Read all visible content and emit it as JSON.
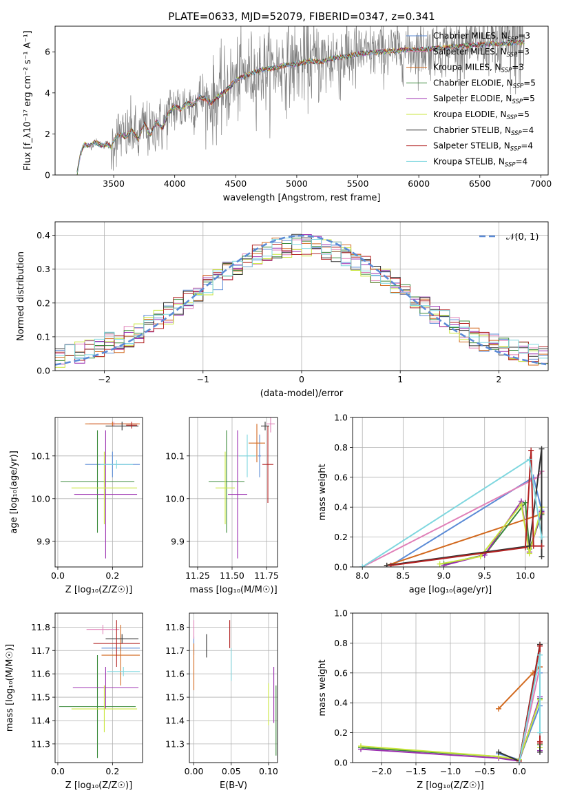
{
  "figure": {
    "title": "PLATE=0633, MJD=52079, FIBERID=0347, z=0.341"
  },
  "colors": [
    "#5b8bd6",
    "#e080b8",
    "#d2691e",
    "#3a8a3a",
    "#9b2fb0",
    "#c8e63c",
    "#333333",
    "#b22222",
    "#7fd7df"
  ],
  "chart_data": [
    {
      "id": "spectrum",
      "type": "line",
      "xlabel": "wavelength [Angstrom, rest frame]",
      "ylabel": "Flux [f_λ10⁻¹⁷ erg cm⁻² s⁻¹ A⁻¹]",
      "xlim": [
        3020,
        7060
      ],
      "ylim": [
        0,
        7.25
      ],
      "xticks": [
        3500,
        4000,
        4500,
        5000,
        5500,
        6000,
        6500,
        7000
      ],
      "yticks": [
        0,
        2,
        4,
        6
      ],
      "legend_location": "right",
      "legend": [
        "Chabrier MILES, N_SSP=3",
        "Salpeter MILES, N_SSP=3",
        "Kroupa MILES, N_SSP=3",
        "Chabrier ELODIE, N_SSP=5",
        "Salpeter ELODIE, N_SSP=5",
        "Kroupa ELODIE, N_SSP=5",
        "Chabrier STELIB, N_SSP=4",
        "Salpeter STELIB, N_SSP=4",
        "Kroupa STELIB, N_SSP=4"
      ],
      "data_color": "#808080",
      "model_x": [
        3200,
        3230,
        3260,
        3300,
        3350,
        3400,
        3450,
        3480,
        3500,
        3550,
        3600,
        3650,
        3700,
        3750,
        3800,
        3850,
        3900,
        3950,
        4000,
        4050,
        4100,
        4150,
        4200,
        4250,
        4300,
        4350,
        4400,
        4450,
        4500,
        4600,
        4700,
        4800,
        4900,
        5000,
        5100,
        5200,
        5300,
        5400,
        5500,
        5600,
        5700,
        5800,
        5900,
        6000,
        6100,
        6200,
        6300,
        6400,
        6500,
        6600,
        6700,
        6800
      ],
      "model_y": [
        0.05,
        1.1,
        1.5,
        1.4,
        1.6,
        1.45,
        1.5,
        1.35,
        1.7,
        2.0,
        1.85,
        2.2,
        1.7,
        2.5,
        1.95,
        2.6,
        2.3,
        3.0,
        3.35,
        3.2,
        3.5,
        3.4,
        3.8,
        3.7,
        3.5,
        3.8,
        4.0,
        4.3,
        4.6,
        4.9,
        5.1,
        5.2,
        5.35,
        5.4,
        5.55,
        5.5,
        5.7,
        5.75,
        5.9,
        5.95,
        6.0,
        6.05,
        6.1,
        6.1,
        6.15,
        6.2,
        6.25,
        6.3,
        6.35,
        6.4,
        6.4,
        6.45
      ]
    },
    {
      "id": "residuals",
      "type": "histogram",
      "xlabel": "(data-model)/error",
      "ylabel": "Normed distribution",
      "xlim": [
        -2.5,
        2.5
      ],
      "ylim": [
        0,
        0.44
      ],
      "xticks": [
        -2,
        -1,
        0,
        1,
        2
      ],
      "yticks": [
        0.0,
        0.1,
        0.2,
        0.3,
        0.4
      ],
      "grid": true,
      "legend_location": "top-right",
      "gaussian_label": "𝒩(0, 1)",
      "gaussian_color": "#5b8bd6",
      "bin_width": 0.1
    },
    {
      "id": "age_vs_Z",
      "type": "errorbar",
      "xlabel": "Z [log₁₀(Z/Z☉)]",
      "ylabel": "age  [log₁₀(age/yr)]",
      "xlim": [
        -0.01,
        0.31
      ],
      "ylim": [
        9.84,
        10.19
      ],
      "xticks": [
        0.0,
        0.2
      ],
      "yticks": [
        9.9,
        10.0,
        10.1
      ],
      "grid": true,
      "points": [
        {
          "x": 0.2,
          "xerr": 0.1,
          "y": 10.08,
          "yerr": 0.03,
          "color": "#5b8bd6"
        },
        {
          "x": 0.205,
          "xerr": 0.09,
          "y": 10.175,
          "yerr": 0.005,
          "color": "#e080b8"
        },
        {
          "x": 0.2,
          "xerr": 0.1,
          "y": 10.175,
          "yerr": 0.005,
          "color": "#d2691e"
        },
        {
          "x": 0.145,
          "xerr": 0.135,
          "y": 10.04,
          "yerr": 0.12,
          "color": "#3a8a3a"
        },
        {
          "x": 0.175,
          "xerr": 0.115,
          "y": 10.01,
          "yerr": 0.15,
          "color": "#9b2fb0"
        },
        {
          "x": 0.17,
          "xerr": 0.12,
          "y": 10.025,
          "yerr": 0.085,
          "color": "#c8e63c"
        },
        {
          "x": 0.235,
          "xerr": 0.06,
          "y": 10.17,
          "yerr": 0.01,
          "color": "#333333"
        },
        {
          "x": 0.27,
          "xerr": 0.02,
          "y": 10.172,
          "yerr": 0.008,
          "color": "#b22222"
        },
        {
          "x": 0.215,
          "xerr": 0.06,
          "y": 10.08,
          "yerr": 0.01,
          "color": "#7fd7df"
        }
      ]
    },
    {
      "id": "age_vs_mass",
      "type": "errorbar",
      "xlabel": "mass [log₁₀(M/M☉)]",
      "ylabel": "",
      "xlim": [
        11.19,
        11.83
      ],
      "ylim": [
        9.84,
        10.19
      ],
      "xticks": [
        11.25,
        11.5,
        11.75
      ],
      "yticks": [
        9.9,
        10.0,
        10.1
      ],
      "grid": true,
      "points": [
        {
          "x": 11.7,
          "xerr": 0.01,
          "y": 10.1,
          "yerr": 0.05,
          "color": "#5b8bd6"
        },
        {
          "x": 11.78,
          "xerr": 0.03,
          "y": 10.175,
          "yerr": 0.02,
          "color": "#e080b8"
        },
        {
          "x": 11.68,
          "xerr": 0.06,
          "y": 10.13,
          "yerr": 0.045,
          "color": "#d2691e"
        },
        {
          "x": 11.46,
          "xerr": 0.13,
          "y": 10.04,
          "yerr": 0.12,
          "color": "#3a8a3a"
        },
        {
          "x": 11.54,
          "xerr": 0.07,
          "y": 10.01,
          "yerr": 0.15,
          "color": "#9b2fb0"
        },
        {
          "x": 11.45,
          "xerr": 0.07,
          "y": 10.025,
          "yerr": 0.085,
          "color": "#c8e63c"
        },
        {
          "x": 11.74,
          "xerr": 0.03,
          "y": 10.17,
          "yerr": 0.01,
          "color": "#333333"
        },
        {
          "x": 11.76,
          "xerr": 0.04,
          "y": 10.08,
          "yerr": 0.09,
          "color": "#b22222"
        },
        {
          "x": 11.61,
          "xerr": 0.06,
          "y": 10.1,
          "yerr": 0.05,
          "color": "#7fd7df"
        }
      ]
    },
    {
      "id": "weight_vs_age",
      "type": "line",
      "xlabel": "age  [log₁₀(age/yr)]",
      "ylabel": "mass weight",
      "xlim": [
        7.88,
        10.28
      ],
      "ylim": [
        0,
        1.0
      ],
      "xticks": [
        8.0,
        8.5,
        9.0,
        9.5,
        10.0
      ],
      "yticks": [
        0.0,
        0.2,
        0.4,
        0.6,
        0.8,
        1.0
      ],
      "grid": true,
      "series": [
        {
          "color": "#5b8bd6",
          "x": [
            8.35,
            10.1,
            10.2
          ],
          "y": [
            0.01,
            0.6,
            0.38
          ]
        },
        {
          "color": "#e080b8",
          "x": [
            8.0,
            10.15,
            10.2
          ],
          "y": [
            0.0,
            0.6,
            0.64
          ]
        },
        {
          "color": "#d2691e",
          "x": [
            8.3,
            10.18,
            10.2
          ],
          "y": [
            0.01,
            0.35,
            0.36
          ]
        },
        {
          "color": "#3a8a3a",
          "x": [
            9.0,
            9.5,
            10.0,
            10.05,
            10.2
          ],
          "y": [
            0.02,
            0.08,
            0.43,
            0.12,
            0.35
          ]
        },
        {
          "color": "#9b2fb0",
          "x": [
            9.0,
            9.5,
            9.95,
            10.05,
            10.2
          ],
          "y": [
            0.01,
            0.08,
            0.44,
            0.1,
            0.37
          ]
        },
        {
          "color": "#c8e63c",
          "x": [
            8.95,
            9.45,
            9.95,
            10.05,
            10.2
          ],
          "y": [
            0.02,
            0.07,
            0.42,
            0.09,
            0.4
          ]
        },
        {
          "color": "#333333",
          "x": [
            8.3,
            10.05,
            10.2,
            10.2
          ],
          "y": [
            0.01,
            0.14,
            0.79,
            0.07
          ]
        },
        {
          "color": "#b22222",
          "x": [
            8.35,
            10.0,
            10.07,
            10.1,
            10.2
          ],
          "y": [
            0.01,
            0.13,
            0.78,
            0.14,
            0.14
          ]
        },
        {
          "color": "#7fd7df",
          "x": [
            8.0,
            10.05,
            10.2
          ],
          "y": [
            0.0,
            0.72,
            0.2
          ]
        }
      ]
    },
    {
      "id": "mass_vs_Z",
      "type": "errorbar",
      "xlabel": "Z [log₁₀(Z/Z☉)]",
      "ylabel": "mass [log₁₀(M/M☉)]",
      "xlim": [
        -0.01,
        0.31
      ],
      "ylim": [
        11.22,
        11.86
      ],
      "xticks": [
        0.0,
        0.2
      ],
      "yticks": [
        11.3,
        11.4,
        11.5,
        11.6,
        11.7,
        11.8
      ],
      "grid": true,
      "points": [
        {
          "x": 0.23,
          "xerr": 0.07,
          "y": 11.71,
          "yerr": 0.01,
          "color": "#5b8bd6"
        },
        {
          "x": 0.165,
          "xerr": 0.06,
          "y": 11.79,
          "yerr": 0.02,
          "color": "#e080b8"
        },
        {
          "x": 0.23,
          "xerr": 0.07,
          "y": 11.68,
          "yerr": 0.13,
          "color": "#d2691e"
        },
        {
          "x": 0.145,
          "xerr": 0.14,
          "y": 11.46,
          "yerr": 0.22,
          "color": "#3a8a3a"
        },
        {
          "x": 0.175,
          "xerr": 0.12,
          "y": 11.54,
          "yerr": 0.09,
          "color": "#9b2fb0"
        },
        {
          "x": 0.17,
          "xerr": 0.12,
          "y": 11.45,
          "yerr": 0.1,
          "color": "#c8e63c"
        },
        {
          "x": 0.235,
          "xerr": 0.06,
          "y": 11.75,
          "yerr": 0.02,
          "color": "#333333"
        },
        {
          "x": 0.215,
          "xerr": 0.085,
          "y": 11.73,
          "yerr": 0.1,
          "color": "#b22222"
        },
        {
          "x": 0.24,
          "xerr": 0.06,
          "y": 11.61,
          "yerr": 0.02,
          "color": "#7fd7df"
        }
      ]
    },
    {
      "id": "mass_vs_ebv",
      "type": "errorbar",
      "xlabel": "E(B-V)",
      "ylabel": "",
      "xlim": [
        -0.006,
        0.112
      ],
      "ylim": [
        11.22,
        11.86
      ],
      "xticks": [
        0.0,
        0.05,
        0.1
      ],
      "yticks": [
        11.3,
        11.4,
        11.5,
        11.6,
        11.7,
        11.8
      ],
      "grid": true,
      "points": [
        {
          "x": 0.0,
          "y": 11.72,
          "yerr": 0.04,
          "color": "#5b8bd6"
        },
        {
          "x": 0.0,
          "y": 11.79,
          "yerr": 0.04,
          "color": "#e080b8"
        },
        {
          "x": 0.0,
          "y": 11.63,
          "yerr": 0.1,
          "color": "#d2691e"
        },
        {
          "x": 0.11,
          "y": 11.4,
          "yerr": 0.15,
          "color": "#3a8a3a"
        },
        {
          "x": 0.107,
          "y": 11.51,
          "yerr": 0.12,
          "color": "#9b2fb0"
        },
        {
          "x": 0.1,
          "y": 11.47,
          "yerr": 0.09,
          "color": "#c8e63c"
        },
        {
          "x": 0.017,
          "y": 11.72,
          "yerr": 0.05,
          "color": "#333333"
        },
        {
          "x": 0.048,
          "y": 11.77,
          "yerr": 0.06,
          "color": "#b22222"
        },
        {
          "x": 0.05,
          "y": 11.64,
          "yerr": 0.07,
          "color": "#7fd7df"
        }
      ]
    },
    {
      "id": "weight_vs_Z",
      "type": "line",
      "xlabel": "Z [log₁₀(Z/Z☉)]",
      "ylabel": "mass weight",
      "xlim": [
        -2.42,
        0.42
      ],
      "ylim": [
        0,
        1.0
      ],
      "xticks": [
        -2.0,
        -1.5,
        -1.0,
        -0.5,
        0.0
      ],
      "yticks": [
        0.0,
        0.2,
        0.4,
        0.6,
        0.8,
        1.0
      ],
      "grid": true,
      "series": [
        {
          "color": "#5b8bd6",
          "x": [
            -0.3,
            0.0,
            0.3,
            0.3
          ],
          "y": [
            0.06,
            0.02,
            0.38,
            0.6
          ]
        },
        {
          "color": "#e080b8",
          "x": [
            0.0,
            0.3
          ],
          "y": [
            0.0,
            0.64
          ]
        },
        {
          "color": "#d2691e",
          "x": [
            -0.3,
            0.2,
            0.3
          ],
          "y": [
            0.36,
            0.6,
            0.64
          ]
        },
        {
          "color": "#3a8a3a",
          "x": [
            -2.3,
            -0.3,
            0.0,
            0.3,
            0.3
          ],
          "y": [
            0.1,
            0.04,
            0.01,
            0.43,
            0.12
          ]
        },
        {
          "color": "#9b2fb0",
          "x": [
            -2.3,
            -0.3,
            0.0,
            0.3,
            0.3
          ],
          "y": [
            0.09,
            0.03,
            0.01,
            0.44,
            0.08
          ]
        },
        {
          "color": "#c8e63c",
          "x": [
            -2.3,
            -0.3,
            0.0,
            0.3,
            0.3
          ],
          "y": [
            0.11,
            0.04,
            0.02,
            0.42,
            0.1
          ]
        },
        {
          "color": "#333333",
          "x": [
            -0.3,
            0.0,
            0.3,
            0.3
          ],
          "y": [
            0.07,
            0.01,
            0.79,
            0.07
          ]
        },
        {
          "color": "#b22222",
          "x": [
            0.0,
            0.3,
            0.3,
            0.3
          ],
          "y": [
            0.01,
            0.78,
            0.14,
            0.13
          ]
        },
        {
          "color": "#7fd7df",
          "x": [
            0.0,
            0.3,
            0.3
          ],
          "y": [
            0.0,
            0.72,
            0.2
          ]
        }
      ]
    }
  ]
}
